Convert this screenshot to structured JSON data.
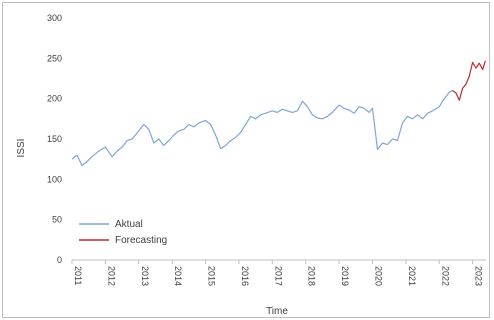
{
  "chart_data": {
    "type": "line",
    "xlabel": "Time",
    "ylabel": "ISSI",
    "ylim": [
      0,
      300
    ],
    "yticks": [
      0,
      50,
      100,
      150,
      200,
      250,
      300
    ],
    "xlim": [
      2011,
      2023.4
    ],
    "xticks": [
      "2011",
      "2012",
      "2013",
      "2014",
      "2015",
      "2016",
      "2017",
      "2018",
      "2019",
      "2020",
      "2021",
      "2022",
      "2023"
    ],
    "grid": false,
    "legend_position": "bottom-left",
    "series": [
      {
        "name": "Aktual",
        "color": "#7ea6d8",
        "x": [
          2011.0,
          2011.15,
          2011.3,
          2011.45,
          2011.6,
          2011.8,
          2012.0,
          2012.2,
          2012.35,
          2012.5,
          2012.65,
          2012.8,
          2013.0,
          2013.15,
          2013.3,
          2013.45,
          2013.6,
          2013.75,
          2013.9,
          2014.05,
          2014.2,
          2014.35,
          2014.5,
          2014.65,
          2014.8,
          2015.0,
          2015.15,
          2015.3,
          2015.45,
          2015.6,
          2015.75,
          2015.9,
          2016.05,
          2016.2,
          2016.35,
          2016.5,
          2016.65,
          2016.8,
          2017.0,
          2017.15,
          2017.3,
          2017.45,
          2017.6,
          2017.75,
          2017.9,
          2018.05,
          2018.2,
          2018.35,
          2018.5,
          2018.65,
          2018.8,
          2019.0,
          2019.15,
          2019.3,
          2019.45,
          2019.6,
          2019.75,
          2019.9,
          2020.0,
          2020.15,
          2020.3,
          2020.45,
          2020.6,
          2020.75,
          2020.9,
          2021.05,
          2021.2,
          2021.35,
          2021.5,
          2021.65,
          2021.8,
          2022.0,
          2022.15,
          2022.3,
          2022.4
        ],
        "y": [
          125,
          130,
          117,
          122,
          128,
          135,
          140,
          128,
          135,
          140,
          148,
          150,
          160,
          168,
          162,
          145,
          150,
          142,
          148,
          155,
          160,
          162,
          168,
          165,
          170,
          173,
          168,
          155,
          138,
          142,
          148,
          152,
          158,
          168,
          178,
          175,
          180,
          182,
          185,
          183,
          187,
          185,
          183,
          185,
          197,
          190,
          180,
          176,
          175,
          178,
          183,
          192,
          188,
          186,
          182,
          190,
          188,
          183,
          188,
          137,
          145,
          143,
          150,
          148,
          170,
          178,
          175,
          180,
          175,
          182,
          185,
          190,
          200,
          208,
          210
        ]
      },
      {
        "name": "Forecasting",
        "color": "#c0282d",
        "x": [
          2022.4,
          2022.5,
          2022.6,
          2022.7,
          2022.8,
          2022.9,
          2023.0,
          2023.1,
          2023.2,
          2023.3,
          2023.38
        ],
        "y": [
          210,
          207,
          198,
          213,
          218,
          228,
          245,
          238,
          244,
          236,
          247
        ]
      }
    ]
  }
}
